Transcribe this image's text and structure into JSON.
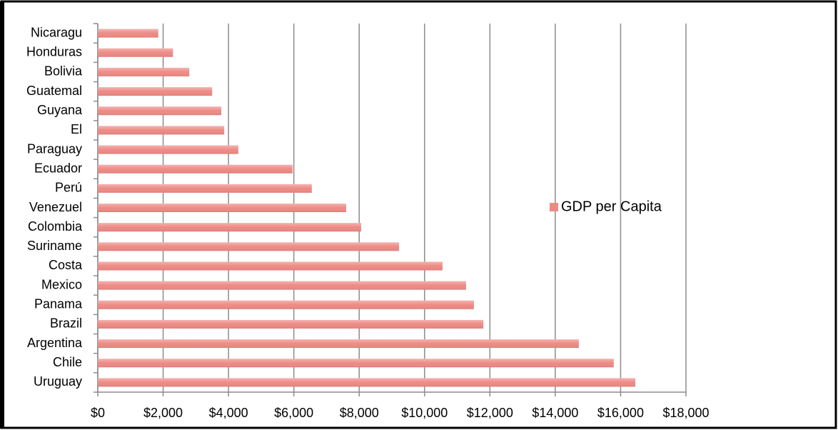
{
  "chart_data": {
    "type": "bar",
    "categories": [
      "Nicaragu",
      "Honduras",
      "Bolivia",
      "Guatemal",
      "Guyana",
      "El",
      "Paraguay",
      "Ecuador",
      "Perú",
      "Venezuel",
      "Colombia",
      "Suriname",
      "Costa",
      "Mexico",
      "Panama",
      "Brazil",
      "Argentina",
      "Chile",
      "Uruguay"
    ],
    "series": [
      {
        "name": "GDP per Capita",
        "color": "#ee8a85",
        "values": [
          1850,
          2300,
          2800,
          3500,
          3780,
          3870,
          4300,
          5960,
          6550,
          7600,
          8060,
          9220,
          10550,
          11270,
          11510,
          11800,
          14720,
          15790,
          16450
        ]
      }
    ],
    "xlim": [
      0,
      18000
    ],
    "xticks": [
      {
        "value": 0,
        "label": "$0"
      },
      {
        "value": 2000,
        "label": "$2,000"
      },
      {
        "value": 4000,
        "label": "$4,000"
      },
      {
        "value": 6000,
        "label": "$6,000"
      },
      {
        "value": 8000,
        "label": "$8,000"
      },
      {
        "value": 10000,
        "label": "$10,000"
      },
      {
        "value": 12000,
        "label": "$12,000"
      },
      {
        "value": 14000,
        "label": "$14,000"
      },
      {
        "value": 16000,
        "label": "$16,000"
      },
      {
        "value": 18000,
        "label": "$18,000"
      }
    ],
    "grid": true,
    "legend": "right"
  }
}
